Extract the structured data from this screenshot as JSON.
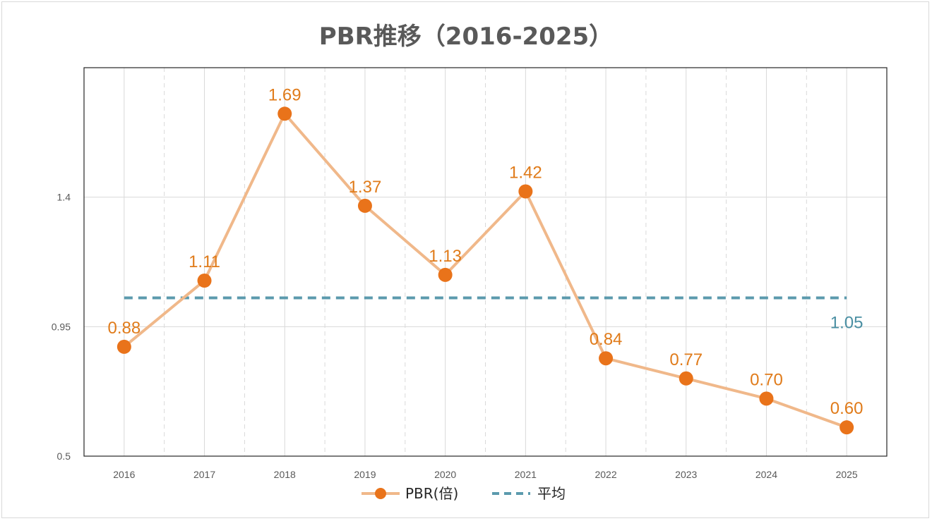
{
  "chart_data": {
    "type": "line",
    "title": "PBR推移（2016-2025）",
    "categories": [
      "2016",
      "2017",
      "2018",
      "2019",
      "2020",
      "2021",
      "2022",
      "2023",
      "2024",
      "2025"
    ],
    "series": [
      {
        "name": "PBR(倍)",
        "values": [
          0.88,
          1.11,
          1.69,
          1.37,
          1.13,
          1.42,
          0.84,
          0.77,
          0.7,
          0.6
        ],
        "labels": [
          "0.88",
          "1.11",
          "1.69",
          "1.37",
          "1.13",
          "1.42",
          "0.84",
          "0.77",
          "0.70",
          "0.60"
        ],
        "color": "#e9731a",
        "line_color": "#f0b88a"
      },
      {
        "name": "平均",
        "value": 1.05,
        "label": "1.05",
        "color": "#5b9aad",
        "style": "dashed"
      }
    ],
    "ylim": [
      0.5,
      1.85
    ],
    "yticks": [
      "0.5",
      "0.95",
      "1.4"
    ],
    "grid": true,
    "legend": "bottom-center",
    "xlabel": "",
    "ylabel": ""
  }
}
